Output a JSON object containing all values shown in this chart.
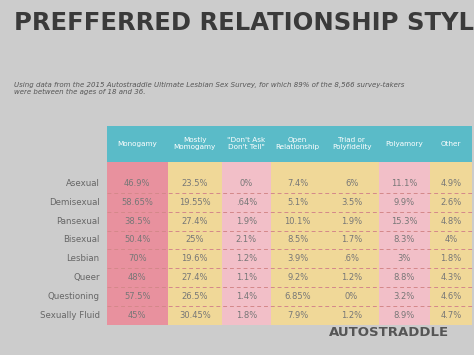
{
  "title": "PREFFERRED RELATIONSHIP STYLES",
  "subtitle": "Using data from the 2015 Autostraddle Ultimate Lesbian Sex Survey, for which 89% of the 8,566 survey-takers\nwere between the ages of 18 and 36.",
  "columns": [
    "Monogamy",
    "Mostly\nMomogamy",
    "\"Don't Ask\nDon't Tell\"",
    "Open\nRelationship",
    "Triad or\nPolyfidelity",
    "Polyamory",
    "Other"
  ],
  "rows": [
    "Asexual",
    "Demisexual",
    "Pansexual",
    "Bisexual",
    "Lesbian",
    "Queer",
    "Questioning",
    "Sexually Fluid"
  ],
  "data": [
    [
      "46.9%",
      "23.5%",
      "0%",
      "7.4%",
      "6%",
      "11.1%",
      "4.9%"
    ],
    [
      "58.65%",
      "19.55%",
      ".64%",
      "5.1%",
      "3.5%",
      "9.9%",
      "2.6%"
    ],
    [
      "38.5%",
      "27.4%",
      "1.9%",
      "10.1%",
      "1.9%",
      "15.3%",
      "4.8%"
    ],
    [
      "50.4%",
      "25%",
      "2.1%",
      "8.5%",
      "1.7%",
      "8.3%",
      "4%"
    ],
    [
      "70%",
      "19.6%",
      "1.2%",
      "3.9%",
      ".6%",
      "3%",
      "1.8%"
    ],
    [
      "48%",
      "27.4%",
      "1.1%",
      "9.2%",
      "1.2%",
      "8.8%",
      "4.3%"
    ],
    [
      "57.5%",
      "26.5%",
      "1.4%",
      "6.85%",
      "0%",
      "3.2%",
      "4.6%"
    ],
    [
      "45%",
      "30.45%",
      "1.8%",
      "7.9%",
      "1.2%",
      "8.9%",
      "4.7%"
    ]
  ],
  "bg_color": "#cccccc",
  "title_color": "#3a3a3a",
  "subtitle_color": "#555555",
  "header_bg": "#5abbc8",
  "header_text": "#ffffff",
  "col_colors": [
    "#e8919e",
    "#f0d898",
    "#f2bfc8",
    "#f0d898",
    "#f0d898",
    "#f2bfc8",
    "#f0d898"
  ],
  "cell_text": "#777777",
  "row_label_color": "#666666",
  "dashed_line_color": "#d4888a",
  "watermark": "AUTOSTRADDLE",
  "watermark_color": "#555555"
}
